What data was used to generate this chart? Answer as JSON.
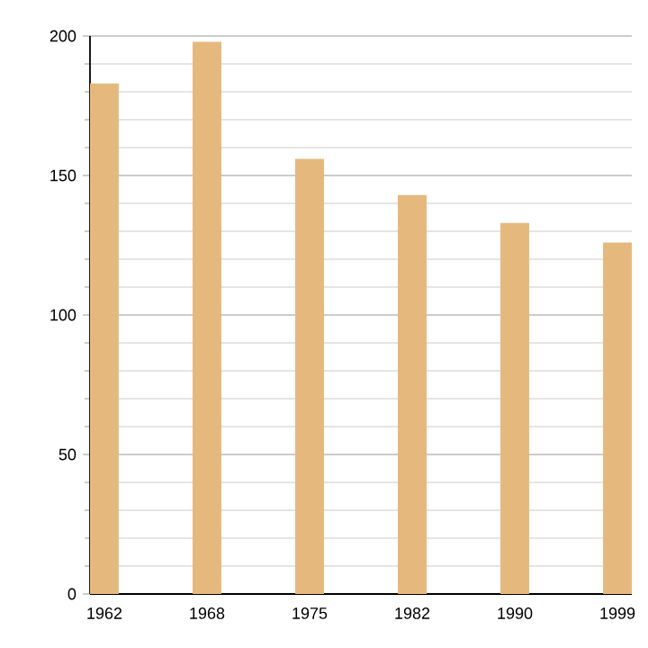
{
  "chart_data": {
    "type": "bar",
    "categories": [
      "1962",
      "1968",
      "1975",
      "1982",
      "1990",
      "1999"
    ],
    "values": [
      183,
      198,
      156,
      143,
      133,
      126
    ],
    "color": "#e5b97d",
    "ylim": [
      0,
      200
    ],
    "yticks": [
      0,
      50,
      100,
      150,
      200
    ],
    "grid": "y"
  }
}
